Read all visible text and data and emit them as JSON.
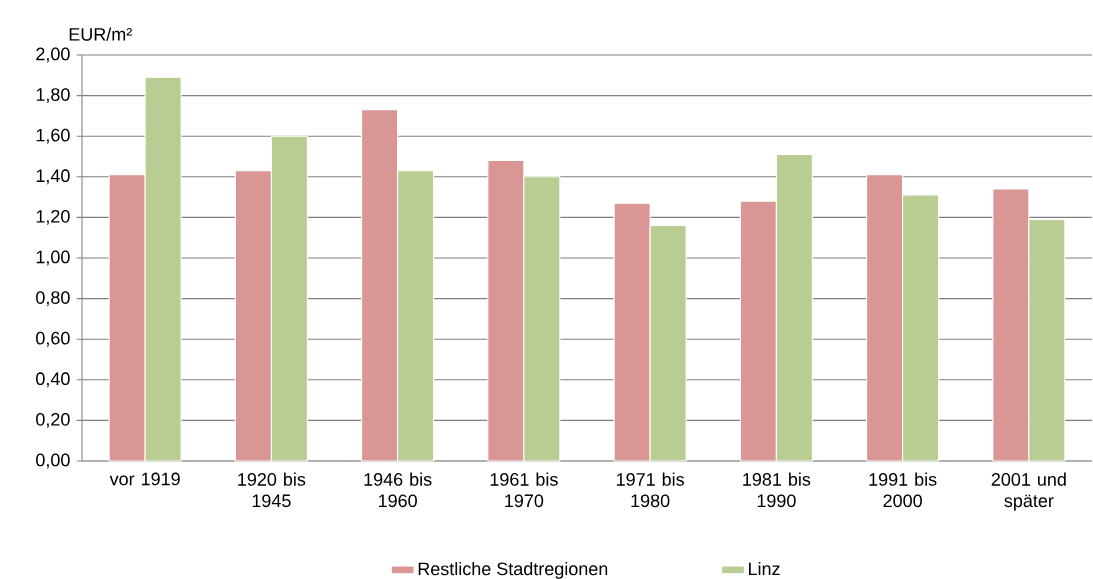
{
  "chart_data": {
    "type": "bar",
    "ylabel": "EUR/m²",
    "categories": [
      "vor 1919",
      "1920 bis 1945",
      "1946 bis 1960",
      "1961 bis 1970",
      "1971 bis 1980",
      "1981 bis 1990",
      "1991 bis 2000",
      "2001 und später"
    ],
    "series": [
      {
        "name": "Restliche Stadtregionen",
        "color": "#d99694",
        "values": [
          1.41,
          1.43,
          1.73,
          1.48,
          1.27,
          1.28,
          1.41,
          1.34
        ]
      },
      {
        "name": "Linz",
        "color": "#b9cd92",
        "values": [
          1.89,
          1.6,
          1.43,
          1.4,
          1.16,
          1.51,
          1.31,
          1.19
        ]
      }
    ],
    "ylim": [
      0,
      2
    ],
    "yticks": [
      {
        "value": 0,
        "label": "0,00"
      },
      {
        "value": 0.2,
        "label": "0,20"
      },
      {
        "value": 0.4,
        "label": "0,40"
      },
      {
        "value": 0.6,
        "label": "0,60"
      },
      {
        "value": 0.8,
        "label": "0,80"
      },
      {
        "value": 1,
        "label": "1,00"
      },
      {
        "value": 1.2,
        "label": "1,20"
      },
      {
        "value": 1.4,
        "label": "1,40"
      },
      {
        "value": 1.6,
        "label": "1,60"
      },
      {
        "value": 1.8,
        "label": "1,80"
      },
      {
        "value": 2,
        "label": "2,00"
      }
    ],
    "grid": "y",
    "legend": "bottom"
  }
}
